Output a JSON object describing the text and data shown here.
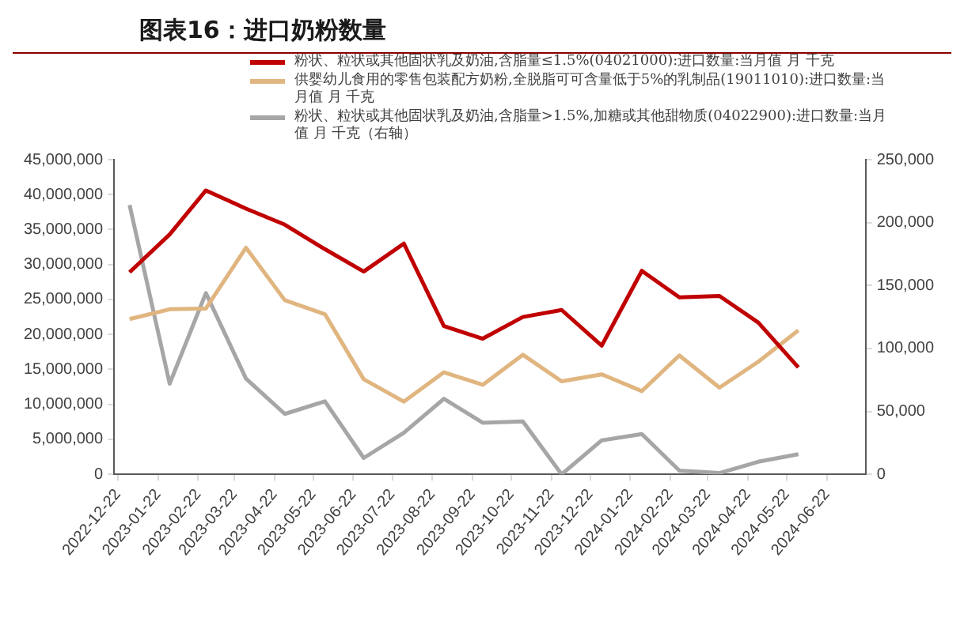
{
  "chart_data": {
    "type": "line",
    "title": "图表16：进口奶粉数量",
    "legend": "top",
    "grid": false,
    "marker": "none",
    "line_style": "solid",
    "x": [
      "2022-12-31",
      "2023-01-31",
      "2023-02-28",
      "2023-03-31",
      "2023-04-30",
      "2023-05-31",
      "2023-06-30",
      "2023-07-31",
      "2023-08-31",
      "2023-09-30",
      "2023-10-31",
      "2023-11-30",
      "2023-12-31",
      "2024-01-31",
      "2024-02-29",
      "2024-03-31",
      "2024-04-30",
      "2024-05-31"
    ],
    "series": [
      {
        "name": "粉状、粒状或其他固状乳及奶油,含脂量≤1.5%(04021000):进口数量:当月值 月 千克",
        "color": "#c00000",
        "values": [
          28900000,
          34300000,
          40600000,
          38000000,
          35700000,
          32200000,
          29000000,
          33000000,
          21200000,
          19400000,
          22500000,
          23500000,
          18400000,
          29100000,
          25300000,
          25500000,
          21700000,
          15300000
        ]
      },
      {
        "name": "供婴幼儿食用的零售包装配方奶粉,全脱脂可可含量低于5%的乳制品(19011010):进口数量:当月值 月 千克",
        "color": "#e0b57f",
        "values": [
          22200000,
          23600000,
          23700000,
          32400000,
          24900000,
          22900000,
          13600000,
          10400000,
          14600000,
          12800000,
          17100000,
          13300000,
          14300000,
          11900000,
          17000000,
          12400000,
          16100000,
          20600000
        ]
      },
      {
        "name": "粉状、粒状或其他固状乳及奶油,含脂量>1.5%,加糖或其他甜物质(04022900):进口数量:当月值 月 千克（右轴）",
        "color": "#a6a6a6",
        "axis": "y2",
        "values": [
          214000,
          72000,
          144000,
          76000,
          48000,
          58000,
          13000,
          33000,
          60000,
          41000,
          42000,
          0,
          27000,
          32000,
          3000,
          1000,
          10000,
          16000
        ]
      }
    ],
    "xlim": [
      "2022-12-19",
      "2024-07-22"
    ],
    "xticks": [
      "2022-12-22",
      "2023-01-22",
      "2023-02-22",
      "2023-03-22",
      "2023-04-22",
      "2023-05-22",
      "2023-06-22",
      "2023-07-22",
      "2023-08-22",
      "2023-09-22",
      "2023-10-22",
      "2023-11-22",
      "2023-12-22",
      "2024-01-22",
      "2024-02-22",
      "2024-03-22",
      "2024-04-22",
      "2024-05-22",
      "2024-06-22"
    ],
    "ylim": [
      0,
      45000000
    ],
    "yticks": [
      0,
      {
        "value": 5000000,
        "label": "5,000,000"
      },
      {
        "value": 10000000,
        "label": "10,000,000"
      },
      {
        "value": 15000000,
        "label": "15,000,000"
      },
      {
        "value": 20000000,
        "label": "20,000,000"
      },
      {
        "value": 25000000,
        "label": "25,000,000"
      },
      {
        "value": 30000000,
        "label": "30,000,000"
      },
      {
        "value": 35000000,
        "label": "35,000,000"
      },
      {
        "value": 40000000,
        "label": "40,000,000"
      },
      {
        "value": 45000000,
        "label": "45,000,000"
      }
    ],
    "y2lim": [
      0,
      250000
    ],
    "y2ticks": [
      0,
      {
        "value": 50000,
        "label": "50,000"
      },
      {
        "value": 100000,
        "label": "100,000"
      },
      {
        "value": 150000,
        "label": "150,000"
      },
      {
        "value": 200000,
        "label": "200,000"
      },
      {
        "value": 250000,
        "label": "250,000"
      }
    ]
  }
}
